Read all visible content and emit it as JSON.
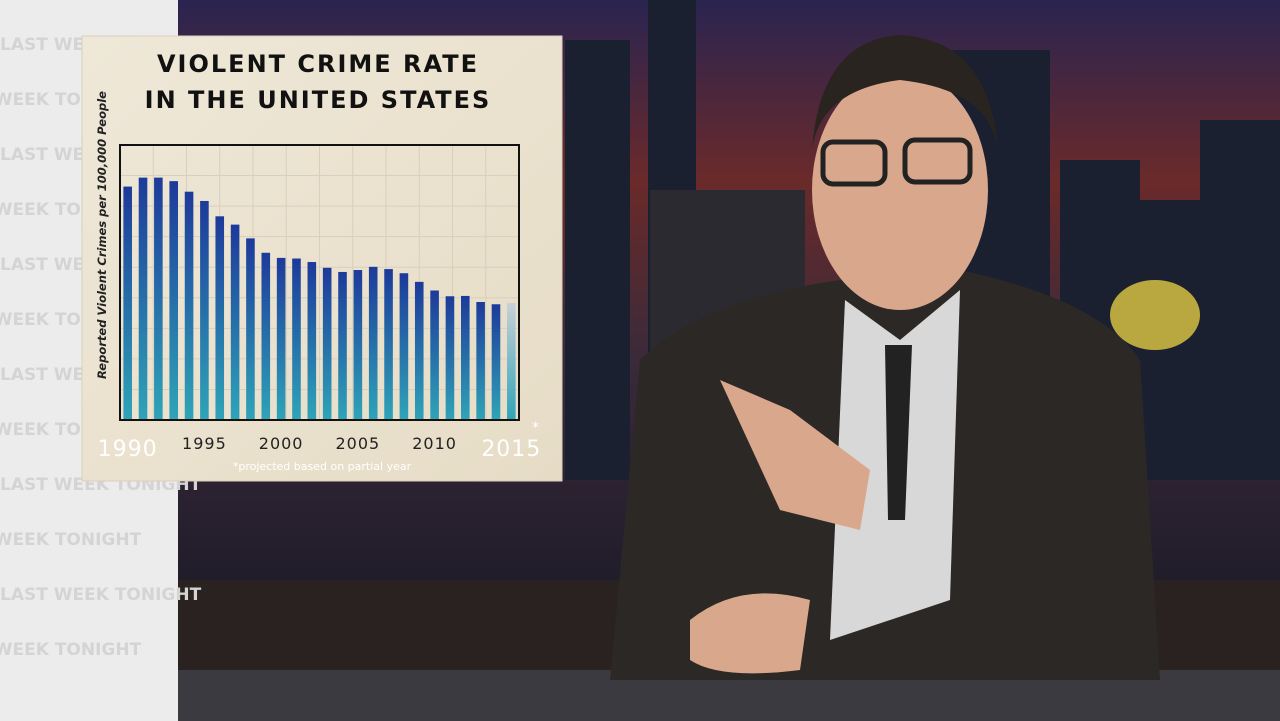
{
  "watermark": "LAST WEEK TONIGHT",
  "chart_data": {
    "type": "bar",
    "title": [
      "VIOLENT CRIME RATE",
      "IN THE UNITED STATES"
    ],
    "y_label": "Reported Violent Crimes per 100,000 People",
    "categories": [
      "1990",
      null,
      null,
      null,
      null,
      "1995",
      null,
      null,
      null,
      null,
      "2000",
      null,
      null,
      null,
      null,
      "2005",
      null,
      null,
      null,
      null,
      "2010",
      null,
      null,
      null,
      null,
      "2015"
    ],
    "values": [
      730,
      758,
      758,
      747,
      714,
      685,
      637,
      611,
      568,
      523,
      507,
      505,
      494,
      476,
      463,
      469,
      479,
      472,
      459,
      432,
      405,
      387,
      388,
      369,
      362,
      366
    ],
    "colors": [
      "#1d3a9a",
      "#1d3a9a",
      "#1d3a9a",
      "#1d3a9a",
      "#1d3a9a",
      "#1d3a9a",
      "#1d3a9a",
      "#1d3a9a",
      "#1d3a9a",
      "#1d3a9a",
      "#1d3a9a",
      "#1d3a9a",
      "#1d3a9a",
      "#1d3a9a",
      "#1d3a9a",
      "#1d3a9a",
      "#1d3a9a",
      "#1d3a9a",
      "#1d3a9a",
      "#1d3a9a",
      "#1d3a9a",
      "#1d3a9a",
      "#1d3a9a",
      "#1d3a9a",
      "#1d3a9a",
      "#c9d0d8"
    ],
    "gradient_bottom": "#2fa4b8",
    "ylim": [
      0,
      860
    ],
    "footnote_marker": "*",
    "footnote": "*projected based on partial year"
  }
}
